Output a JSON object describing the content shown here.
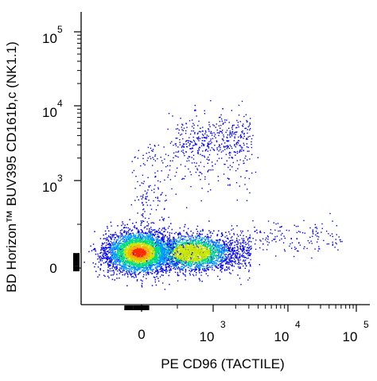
{
  "chart_data": {
    "type": "scatter",
    "subtype": "flow-cytometry-pseudocolor-density-plot",
    "title": "",
    "xlabel": "PE  CD96 (TACTILE)",
    "ylabel": "BD Horizon™ BUV395 CD161b,c (NK1.1)",
    "x_scale": "biexponential",
    "y_scale": "biexponential",
    "grid": false,
    "legend": "none",
    "x_ticks": [
      {
        "base": "0",
        "exp": ""
      },
      {
        "base": "10",
        "exp": "3"
      },
      {
        "base": "10",
        "exp": "4"
      },
      {
        "base": "10",
        "exp": "5"
      }
    ],
    "y_ticks": [
      {
        "base": "0",
        "exp": ""
      },
      {
        "base": "10",
        "exp": "3"
      },
      {
        "base": "10",
        "exp": "4"
      },
      {
        "base": "10",
        "exp": "5"
      }
    ],
    "populations": [
      {
        "name": "",
        "x_center": 0,
        "y_center": 0,
        "relative_density": "highest",
        "peak_color": "#ff2a00"
      },
      {
        "name": "",
        "x_center": 800,
        "y_center": 0,
        "relative_density": "high",
        "peak_color": "#c8e800"
      },
      {
        "name": "",
        "x_center": 800,
        "y_center": 5000,
        "relative_density": "low",
        "peak_color": "#0000ff"
      }
    ],
    "colormap": [
      "#0000ff",
      "#00a0ff",
      "#00e080",
      "#c8e800",
      "#ffb000",
      "#ff2a00"
    ]
  }
}
